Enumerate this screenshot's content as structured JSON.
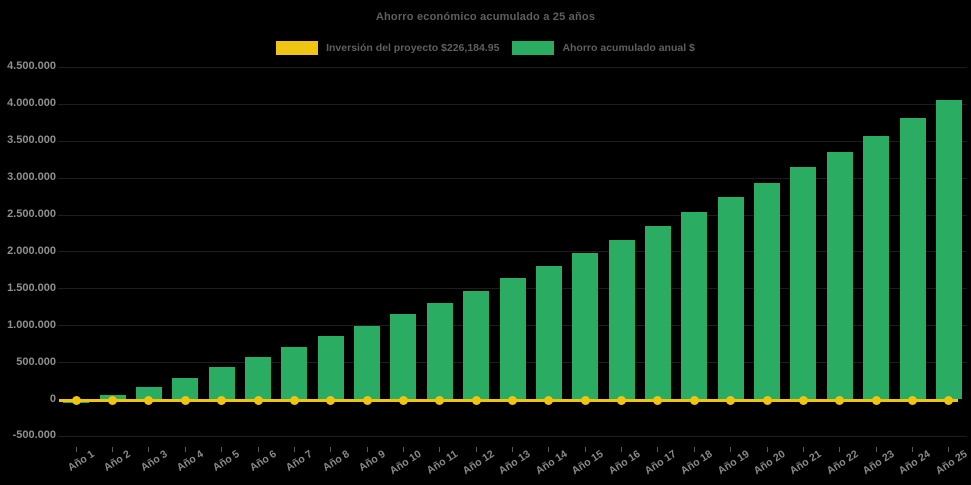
{
  "chart_data": {
    "type": "bar",
    "title": "Ahorro económico acumulado a 25 años",
    "categories": [
      "Año 1",
      "Año 2",
      "Año 3",
      "Año 4",
      "Año 5",
      "Año 6",
      "Año 7",
      "Año 8",
      "Año 9",
      "Año 10",
      "Año 11",
      "Año 12",
      "Año 13",
      "Año 14",
      "Año 15",
      "Año 16",
      "Año 17",
      "Año 18",
      "Año 19",
      "Año 20",
      "Año 21",
      "Año 22",
      "Año 23",
      "Año 24",
      "Año 25"
    ],
    "series": [
      {
        "name": "Inversión del proyecto $226,184.95",
        "type": "line",
        "color": "#EFC413",
        "value": 226184.95,
        "plotted_at": 0
      },
      {
        "name": "Ahorro acumulado anual $",
        "type": "bar",
        "color": "#2BAC63",
        "values": [
          -60000,
          55000,
          170000,
          285000,
          430000,
          565000,
          700000,
          850000,
          990000,
          1155000,
          1300000,
          1465000,
          1635000,
          1800000,
          1980000,
          2155000,
          2340000,
          2540000,
          2735000,
          2930000,
          3145000,
          3350000,
          3570000,
          3805000,
          4050000
        ]
      }
    ],
    "y_axis": {
      "min": -500000,
      "max": 4500000,
      "step": 500000,
      "tick_values": [
        4500000,
        4000000,
        3500000,
        3000000,
        2500000,
        2000000,
        1500000,
        1000000,
        500000,
        0,
        -500000
      ],
      "tick_labels": [
        "4.500.000",
        "4.000.000",
        "3.500.000",
        "3.000.000",
        "2.500.000",
        "2.000.000",
        "1.500.000",
        "1.000.000",
        "500.000",
        "0",
        "-500.000"
      ]
    },
    "legend_position": "top-center",
    "x_label_rotation_deg": -33,
    "grid": "subtle dark gridlines every 500.000",
    "colors": {
      "background": "#000000",
      "title_text": "#5F5F5F",
      "legend_text": "#5F5F5F",
      "y_axis_text": "#8F8F8F",
      "x_axis_text": "#898989"
    }
  }
}
